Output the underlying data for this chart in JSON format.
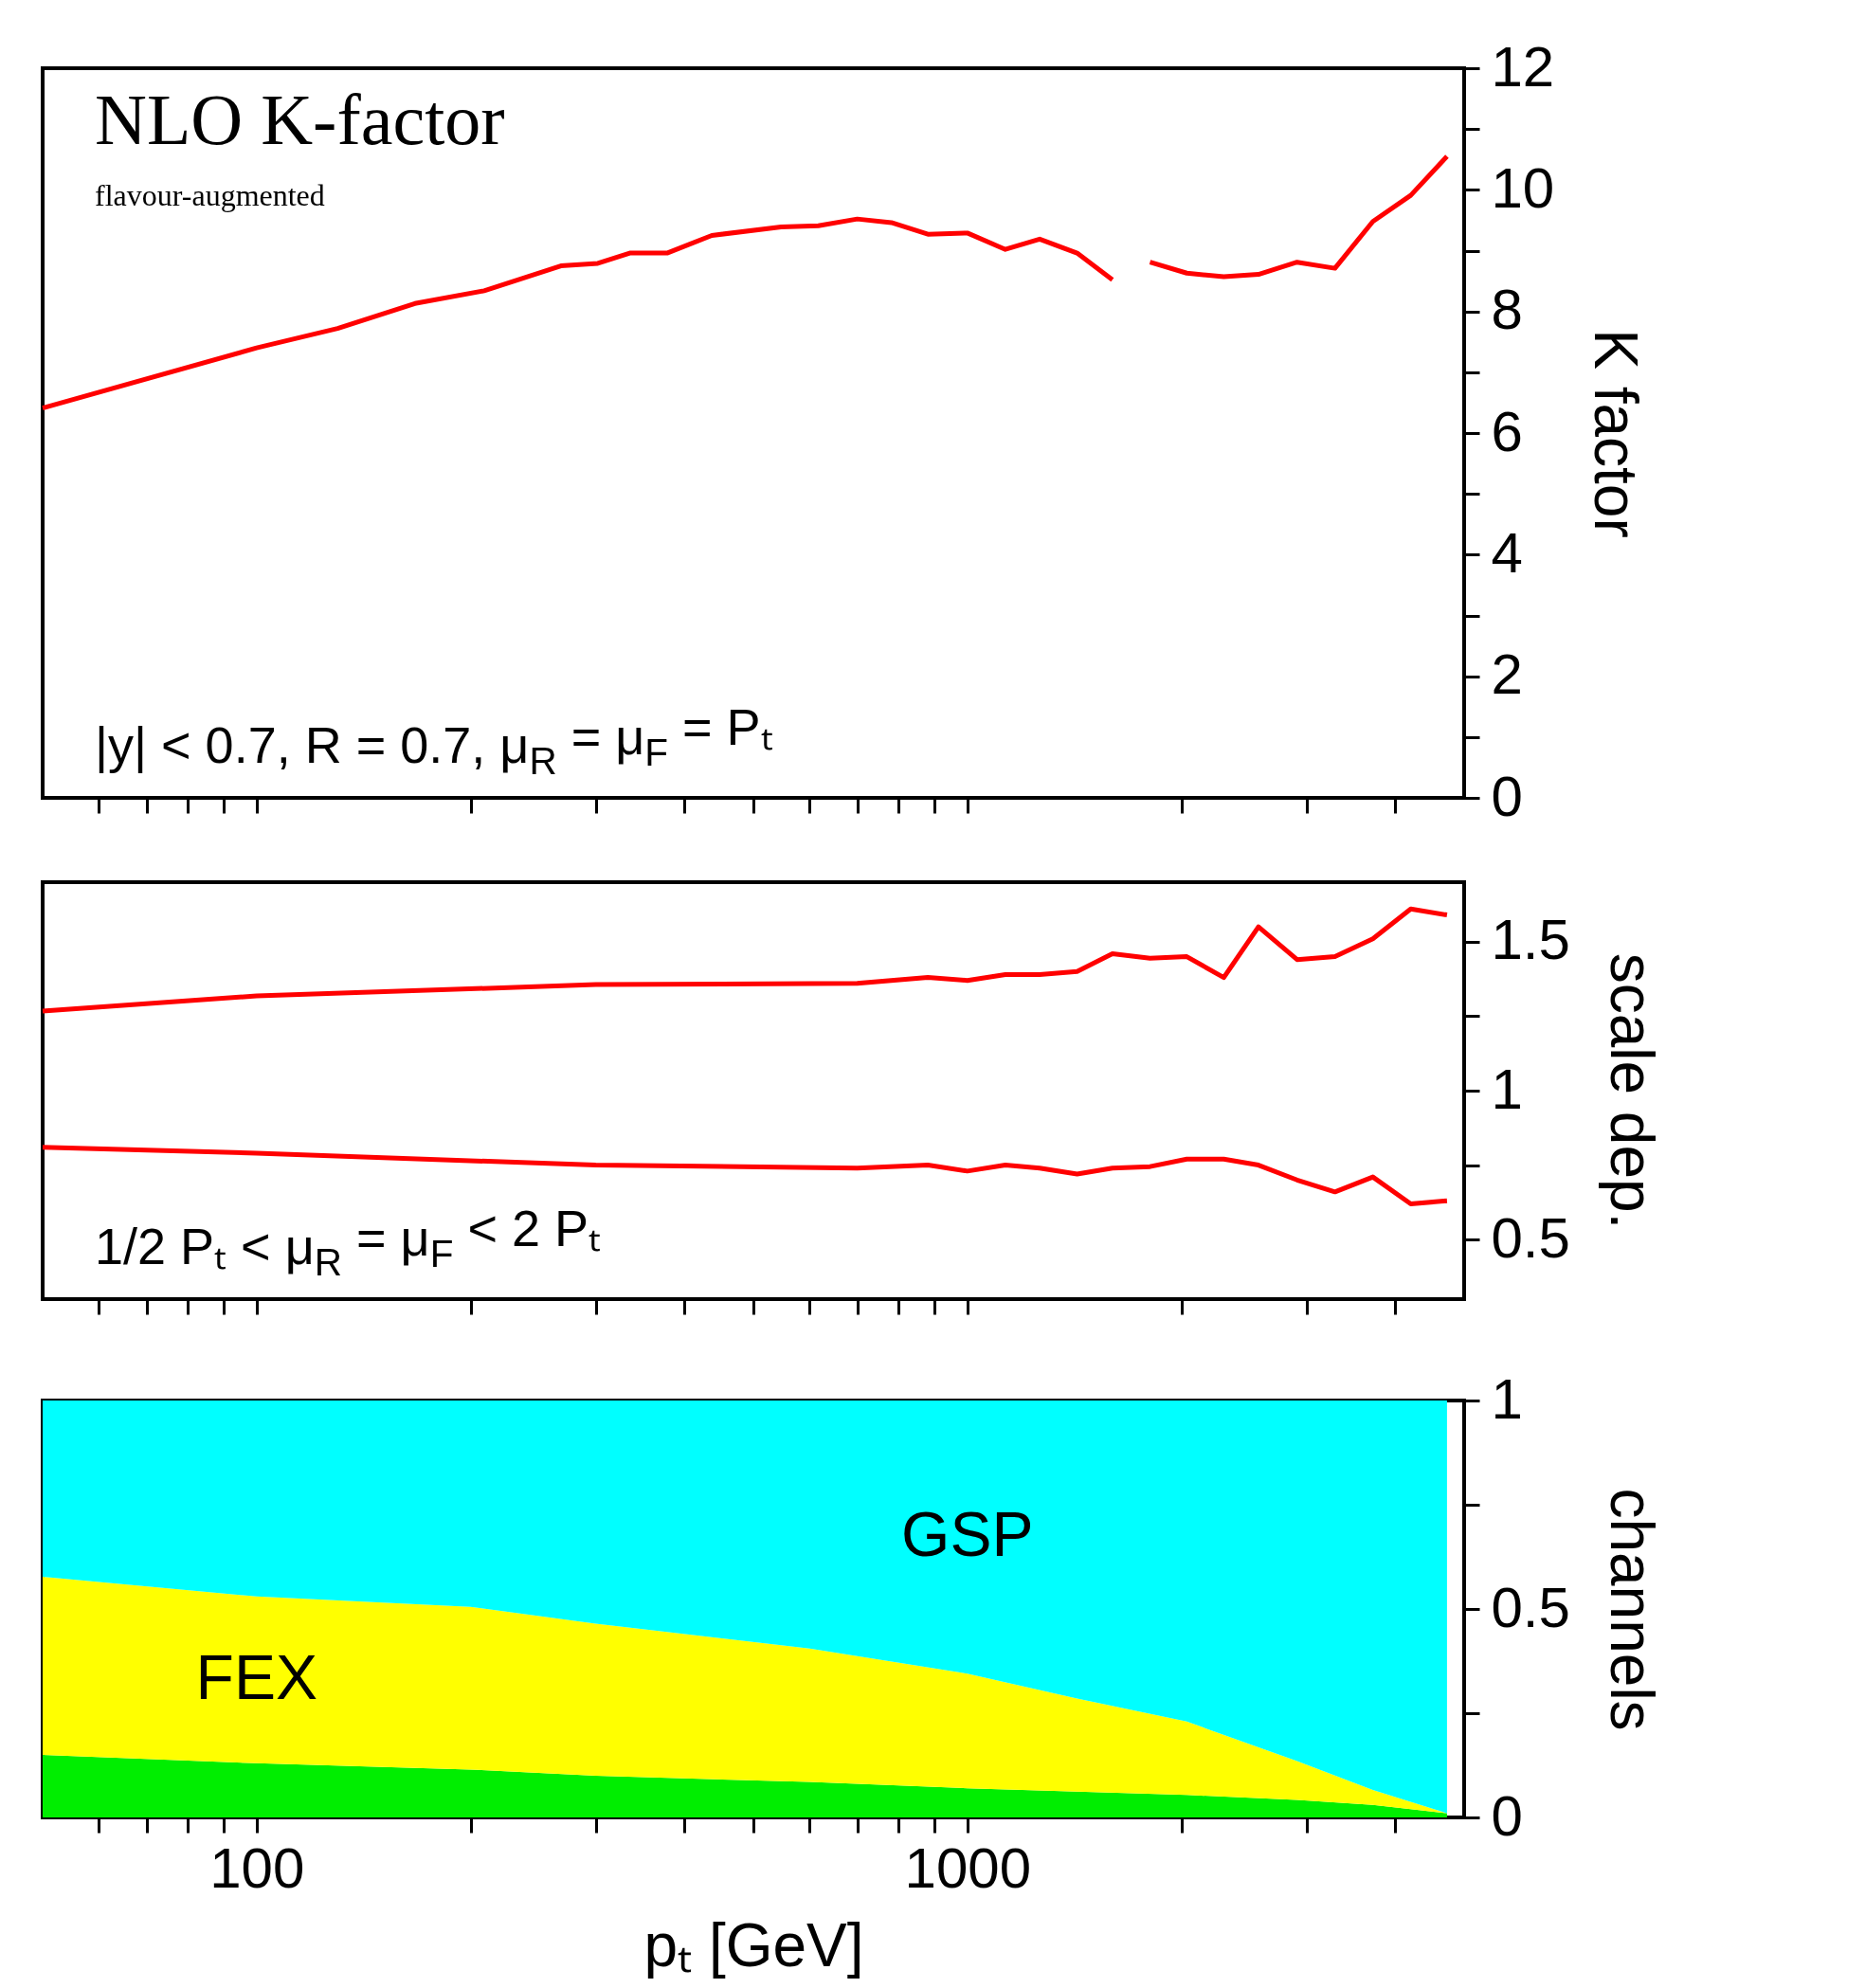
{
  "chart_data": [
    {
      "type": "line",
      "title": "NLO K-factor",
      "subtitle": "flavour-augmented",
      "ylabel": "K factor",
      "annotations": [
        "|y| < 0.7,  R = 0.7, μ$_{R}$ = μ$_{F}$ = Pₜ"
      ],
      "x": [
        50,
        100,
        130,
        167,
        209,
        268,
        302,
        335,
        378,
        437,
        547,
        617,
        700,
        782,
        880,
        1000,
        1131,
        1264,
        1427,
        1600,
        1700,
        1807,
        2036,
        2295,
        2568,
        2910,
        3290,
        3720,
        4206,
        4730
      ],
      "series": [
        {
          "color": "#ff0000",
          "values": [
            6.41,
            7.4,
            7.72,
            8.13,
            8.34,
            8.75,
            8.79,
            8.96,
            8.96,
            9.25,
            9.39,
            9.41,
            9.52,
            9.46,
            9.27,
            9.29,
            9.02,
            9.19,
            8.96,
            8.52,
            null,
            8.81,
            8.63,
            8.57,
            8.61,
            8.81,
            8.71,
            9.48,
            9.91,
            10.55
          ]
        }
      ],
      "xlim": [
        50,
        5000
      ],
      "log": "x",
      "ylim": [
        0,
        12
      ],
      "xticks": [
        {
          "value": 60,
          "label": null
        },
        {
          "value": 70,
          "label": null
        },
        {
          "value": 80,
          "label": null
        },
        {
          "value": 90,
          "label": null
        },
        {
          "value": 100,
          "label": null
        },
        {
          "value": 200,
          "label": null
        },
        {
          "value": 300,
          "label": null
        },
        {
          "value": 400,
          "label": null
        },
        {
          "value": 500,
          "label": null
        },
        {
          "value": 600,
          "label": null
        },
        {
          "value": 700,
          "label": null
        },
        {
          "value": 800,
          "label": null
        },
        {
          "value": 900,
          "label": null
        },
        {
          "value": 1000,
          "label": null
        },
        {
          "value": 2000,
          "label": null
        },
        {
          "value": 3000,
          "label": null
        },
        {
          "value": 4000,
          "label": null
        }
      ],
      "yticks": [
        0,
        {
          "value": 1,
          "label": null
        },
        2,
        {
          "value": 3,
          "label": null
        },
        4,
        {
          "value": 5,
          "label": null
        },
        6,
        {
          "value": 7,
          "label": null
        },
        8,
        {
          "value": 9,
          "label": null
        },
        10,
        {
          "value": 11,
          "label": null
        },
        12
      ],
      "tick_labels": "y",
      "grid": false,
      "line_style": "solid",
      "marker": "none"
    },
    {
      "type": "line",
      "ylabel": "scale dep.",
      "annotations": [
        "1/2 Pₜ < μ$_{R}$ = μ$_{F}$ < 2 Pₜ"
      ],
      "x": [
        50,
        100,
        300,
        700,
        880,
        1000,
        1131,
        1264,
        1427,
        1600,
        1807,
        2036,
        2295,
        2568,
        2910,
        3290,
        3720,
        4206,
        4730
      ],
      "series": [
        {
          "color": "#ff0000",
          "values": [
            1.267,
            1.318,
            1.356,
            1.36,
            1.38,
            1.37,
            1.39,
            1.39,
            1.4,
            1.46,
            1.445,
            1.45,
            1.38,
            1.55,
            1.44,
            1.45,
            1.51,
            1.61,
            1.59
          ]
        },
        {
          "color": "#ff0000",
          "values": [
            0.81,
            0.79,
            0.75,
            0.74,
            0.75,
            0.73,
            0.75,
            0.74,
            0.72,
            0.74,
            0.745,
            0.77,
            0.77,
            0.75,
            0.7,
            0.66,
            0.71,
            0.62,
            0.63
          ]
        }
      ],
      "xlim": [
        50,
        5000
      ],
      "log": "x",
      "ylim": [
        0.3,
        1.7
      ],
      "xticks": [
        {
          "value": 60,
          "label": null
        },
        {
          "value": 70,
          "label": null
        },
        {
          "value": 80,
          "label": null
        },
        {
          "value": 90,
          "label": null
        },
        {
          "value": 100,
          "label": null
        },
        {
          "value": 200,
          "label": null
        },
        {
          "value": 300,
          "label": null
        },
        {
          "value": 400,
          "label": null
        },
        {
          "value": 500,
          "label": null
        },
        {
          "value": 600,
          "label": null
        },
        {
          "value": 700,
          "label": null
        },
        {
          "value": 800,
          "label": null
        },
        {
          "value": 900,
          "label": null
        },
        {
          "value": 1000,
          "label": null
        },
        {
          "value": 2000,
          "label": null
        },
        {
          "value": 3000,
          "label": null
        },
        {
          "value": 4000,
          "label": null
        }
      ],
      "yticks": [
        0.5,
        {
          "value": 0.75,
          "label": null
        },
        1,
        {
          "value": 1.25,
          "label": null
        },
        1.5
      ],
      "tick_labels": "y",
      "grid": false,
      "line_style": "solid",
      "marker": "none"
    },
    {
      "type": "area",
      "stacked": true,
      "ylabel": "channels",
      "xlabel": "pₜ [GeV]",
      "x": [
        50,
        100,
        200,
        300,
        600,
        1000,
        1427,
        2036,
        2910,
        3720,
        4730
      ],
      "series": [
        {
          "color": "#00ee00",
          "values": [
            0.15,
            0.13,
            0.115,
            0.1,
            0.085,
            0.07,
            0.062,
            0.054,
            0.042,
            0.03,
            0.01
          ]
        },
        {
          "name": "FEX",
          "color": "#ffff00",
          "values": [
            0.427,
            0.4,
            0.39,
            0.365,
            0.32,
            0.275,
            0.223,
            0.176,
            0.093,
            0.036,
            0
          ]
        },
        {
          "name": "GSP",
          "color": "#00ffff",
          "values": [
            0.423,
            0.47,
            0.495,
            0.535,
            0.595,
            0.655,
            0.715,
            0.77,
            0.865,
            0.934,
            0.99
          ]
        }
      ],
      "xlim": [
        50,
        5000
      ],
      "log": "x",
      "ylim": [
        0,
        1
      ],
      "xticks": [
        {
          "value": 60,
          "label": null
        },
        {
          "value": 70,
          "label": null
        },
        {
          "value": 80,
          "label": null
        },
        {
          "value": 90,
          "label": null
        },
        100,
        {
          "value": 200,
          "label": null
        },
        {
          "value": 300,
          "label": null
        },
        {
          "value": 400,
          "label": null
        },
        {
          "value": 500,
          "label": null
        },
        {
          "value": 600,
          "label": null
        },
        {
          "value": 700,
          "label": null
        },
        {
          "value": 800,
          "label": null
        },
        {
          "value": 900,
          "label": null
        },
        1000,
        {
          "value": 2000,
          "label": null
        },
        {
          "value": 3000,
          "label": null
        },
        {
          "value": 4000,
          "label": null
        }
      ],
      "yticks": [
        0,
        {
          "value": 0.25,
          "label": null
        },
        0.5,
        {
          "value": 0.75,
          "label": null
        },
        1
      ],
      "grid": false,
      "legend": false
    }
  ]
}
